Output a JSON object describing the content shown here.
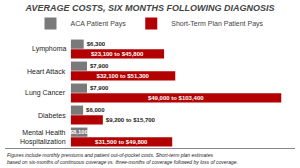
{
  "chart_data": {
    "type": "bar",
    "orientation": "horizontal",
    "title": "AVERAGE COSTS, SIX MONTHS FOLLOWING DIAGNOSIS",
    "categories": [
      "Lymphoma",
      "Heart Attack",
      "Lung Cancer",
      "Diabetes",
      "Mental Health\nHospitalization"
    ],
    "series": [
      {
        "name": "ACA Patient Pays",
        "color": "#7a7a7a",
        "values": [
          6300,
          7900,
          7900,
          6000,
          8100
        ],
        "value_labels": [
          "$6,300",
          "$7,900",
          "$7,900",
          "$6,000",
          "$8,100"
        ]
      },
      {
        "name": "Short-Term Plan Patient Pays",
        "color": "#b30000",
        "values": [
          45800,
          51300,
          103400,
          15700,
          49800
        ],
        "value_labels": [
          "$23,100 to $45,800",
          "$32,100 to $51,300",
          "$49,000 to $103,400",
          "$9,200 to $15,700",
          "$31,500 to $49,800"
        ]
      }
    ],
    "xlim": [
      -32400,
      110160
    ],
    "grid": false,
    "legend": "top",
    "tick_labels": "y",
    "annotations": [
      "Figures include monthly premiums and patient out-of-pocket costs. Short-term plan estimates\nbased on six-months of continuous coverage vs. three-months of coverage followed by loss of coverage."
    ]
  }
}
